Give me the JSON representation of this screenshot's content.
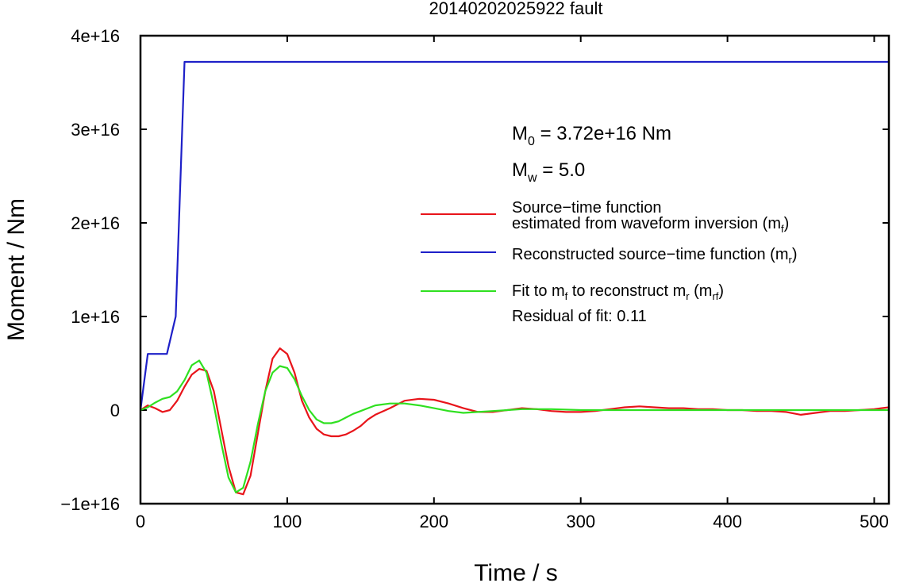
{
  "chart_data": {
    "type": "line",
    "title": "20140202025922 fault",
    "xlabel": "Time / s",
    "ylabel": "Moment / Nm",
    "xlim": [
      0,
      510
    ],
    "ylim": [
      -1e+16,
      4e+16
    ],
    "x_ticks": [
      0,
      100,
      200,
      300,
      400,
      500
    ],
    "x_tick_labels": [
      "0",
      "100",
      "200",
      "300",
      "400",
      "500"
    ],
    "y_ticks": [
      -1e+16,
      0,
      1e+16,
      2e+16,
      3e+16,
      4e+16
    ],
    "y_tick_labels": [
      "−1e+16",
      "0",
      "1e+16",
      "2e+16",
      "3e+16",
      "4e+16"
    ],
    "grid": false,
    "legend_position": "right",
    "annotations": {
      "m0": {
        "main": "M",
        "sub": "0",
        "rest": " = 3.72e+16 Nm"
      },
      "mw": {
        "main": "M",
        "sub": "w",
        "rest": " = 5.0"
      },
      "residual": "Residual of fit: 0.11"
    },
    "series": [
      {
        "key": "mf",
        "color": "#e8141a",
        "legend_line1": "Source−time function",
        "legend_line2_pre": "estimated from waveform inversion (m",
        "legend_line2_sub": "f",
        "legend_line2_post": ")",
        "x": [
          0,
          5,
          10,
          15,
          20,
          25,
          30,
          35,
          40,
          45,
          50,
          55,
          60,
          65,
          70,
          75,
          80,
          85,
          90,
          95,
          100,
          105,
          110,
          115,
          120,
          125,
          130,
          135,
          140,
          145,
          150,
          155,
          160,
          170,
          180,
          190,
          200,
          210,
          220,
          230,
          240,
          250,
          260,
          270,
          280,
          290,
          300,
          310,
          320,
          330,
          340,
          350,
          360,
          370,
          380,
          390,
          400,
          410,
          420,
          430,
          440,
          450,
          460,
          470,
          480,
          490,
          500,
          505,
          510
        ],
        "y": [
          0,
          500000000000000.0,
          200000000000000.0,
          -200000000000000.0,
          0.0,
          1000000000000000.0,
          2500000000000000.0,
          3800000000000000.0,
          4400000000000000.0,
          4200000000000000.0,
          2000000000000000.0,
          -2000000000000000.0,
          -6000000000000000.0,
          -8800000000000000.0,
          -9000000000000000.0,
          -7000000000000000.0,
          -2500000000000000.0,
          2000000000000000.0,
          5500000000000000.0,
          6600000000000000.0,
          6000000000000000.0,
          4000000000000000.0,
          1000000000000000.0,
          -800000000000000.0,
          -2000000000000000.0,
          -2600000000000000.0,
          -2800000000000000.0,
          -2800000000000000.0,
          -2600000000000000.0,
          -2200000000000000.0,
          -1700000000000000.0,
          -1000000000000000.0,
          -500000000000000.0,
          200000000000000.0,
          1000000000000000.0,
          1200000000000000.0,
          1100000000000000.0,
          700000000000000.0,
          200000000000000.0,
          -200000000000000.0,
          -200000000000000.0,
          0.0,
          200000000000000.0,
          100000000000000.0,
          -100000000000000.0,
          -200000000000000.0,
          -200000000000000.0,
          -100000000000000.0,
          100000000000000.0,
          300000000000000.0,
          400000000000000.0,
          300000000000000.0,
          200000000000000.0,
          200000000000000.0,
          100000000000000.0,
          100000000000000.0,
          0.0,
          0.0,
          -100000000000000.0,
          -100000000000000.0,
          -200000000000000.0,
          -500000000000000.0,
          -300000000000000.0,
          -100000000000000.0,
          -100000000000000.0,
          0.0,
          100000000000000.0,
          200000000000000.0,
          300000000000000.0
        ]
      },
      {
        "key": "mr",
        "color": "#1e20c8",
        "legend_pre": "Reconstructed source−time function (m",
        "legend_sub": "r",
        "legend_post": ")",
        "x": [
          0,
          5,
          18,
          24,
          30,
          510
        ],
        "y": [
          0,
          6000000000000000.0,
          6000000000000000.0,
          1e+16,
          3.72e+16,
          3.72e+16
        ]
      },
      {
        "key": "mrf",
        "color": "#2fe020",
        "legend_pre": "Fit to m",
        "legend_sub1": "f",
        "legend_mid": " to reconstruct m",
        "legend_sub2": "r",
        "legend_mid2": " (m",
        "legend_sub3": "rf",
        "legend_post": ")",
        "x": [
          0,
          5,
          10,
          15,
          20,
          25,
          30,
          35,
          40,
          45,
          50,
          55,
          60,
          65,
          70,
          75,
          80,
          85,
          90,
          95,
          100,
          105,
          110,
          115,
          120,
          125,
          130,
          135,
          140,
          145,
          150,
          155,
          160,
          170,
          180,
          190,
          200,
          210,
          220,
          230,
          240,
          250,
          260,
          280,
          300,
          320,
          340,
          360,
          380,
          400,
          420,
          440,
          460,
          480,
          500,
          510
        ],
        "y": [
          0,
          300000000000000.0,
          800000000000000.0,
          1200000000000000.0,
          1400000000000000.0,
          2000000000000000.0,
          3200000000000000.0,
          4800000000000000.0,
          5300000000000000.0,
          4000000000000000.0,
          500000000000000.0,
          -3500000000000000.0,
          -7200000000000000.0,
          -8800000000000000.0,
          -8300000000000000.0,
          -5500000000000000.0,
          -1500000000000000.0,
          2000000000000000.0,
          4000000000000000.0,
          4700000000000000.0,
          4500000000000000.0,
          3300000000000000.0,
          1500000000000000.0,
          0.0,
          -1000000000000000.0,
          -1400000000000000.0,
          -1400000000000000.0,
          -1200000000000000.0,
          -800000000000000.0,
          -400000000000000.0,
          -100000000000000.0,
          200000000000000.0,
          500000000000000.0,
          700000000000000.0,
          700000000000000.0,
          500000000000000.0,
          200000000000000.0,
          -100000000000000.0,
          -300000000000000.0,
          -200000000000000.0,
          -100000000000000.0,
          0.0,
          100000000000000.0,
          100000000000000.0,
          0.0,
          0.0,
          0.0,
          0.0,
          0.0,
          0.0,
          0.0,
          0.0,
          0.0,
          0.0,
          0.0,
          0.0
        ]
      }
    ]
  }
}
